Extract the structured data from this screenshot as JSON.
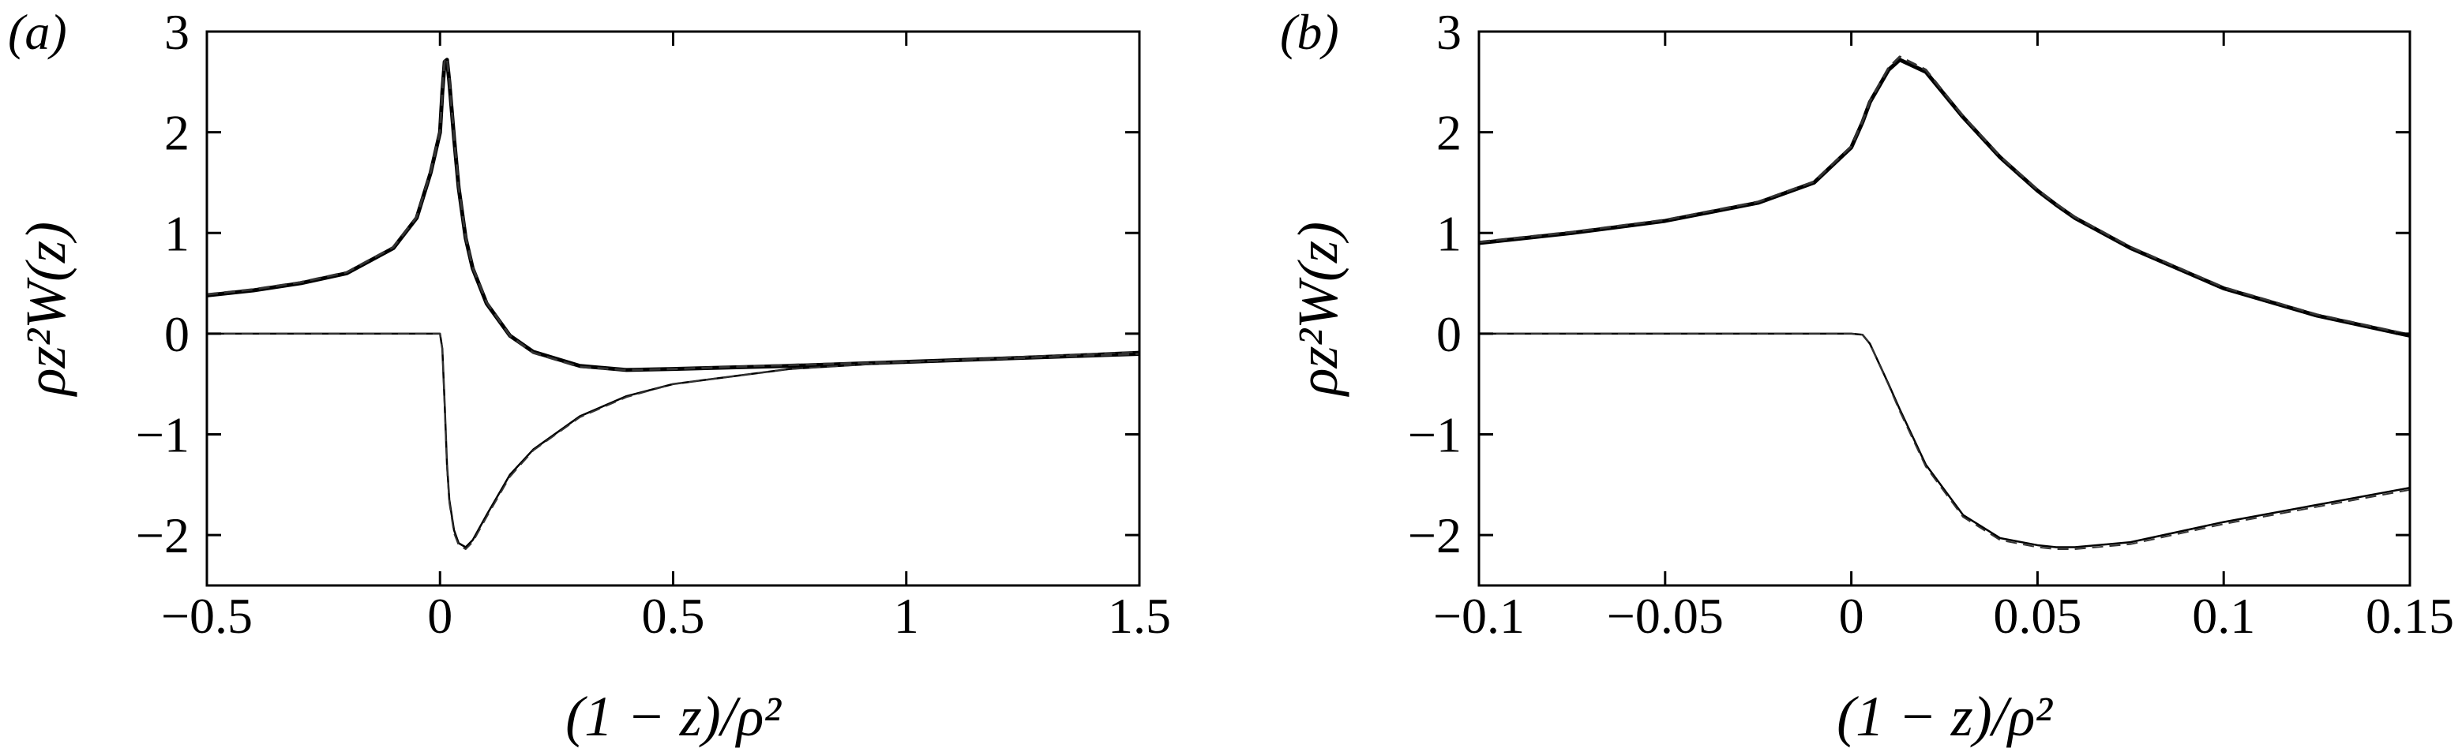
{
  "chart_data": [
    {
      "type": "line",
      "panel_label": "(a)",
      "xlabel": "(1 − z)/ρ²",
      "ylabel": "ρz²W(z)",
      "xlim": [
        -0.5,
        1.5
      ],
      "ylim": [
        -2.5,
        3
      ],
      "xticks": [
        {
          "value": -0.5,
          "label": "−0.5"
        },
        0,
        0.5,
        1,
        1.5
      ],
      "yticks": [
        {
          "value": -2,
          "label": "−2"
        },
        {
          "value": -1,
          "label": "−1"
        },
        0,
        1,
        2,
        3
      ],
      "x": [
        -0.5,
        -0.4,
        -0.3,
        -0.2,
        -0.1,
        -0.05,
        -0.02,
        0,
        0.005,
        0.01,
        0.015,
        0.02,
        0.03,
        0.04,
        0.055,
        0.07,
        0.1,
        0.15,
        0.2,
        0.3,
        0.4,
        0.5,
        0.75,
        1,
        1.25,
        1.5
      ],
      "series": [
        {
          "color": "#000000",
          "linewidth": 5,
          "dash": false,
          "values": [
            0.38,
            0.43,
            0.5,
            0.6,
            0.85,
            1.15,
            1.6,
            2.0,
            2.4,
            2.7,
            2.72,
            2.5,
            1.95,
            1.45,
            0.95,
            0.65,
            0.3,
            -0.02,
            -0.18,
            -0.32,
            -0.36,
            -0.35,
            -0.32,
            -0.28,
            -0.24,
            -0.2
          ]
        },
        {
          "color": "#000000",
          "linewidth": 2.5,
          "dash": false,
          "values": [
            0,
            0,
            0,
            0,
            0,
            0,
            0,
            0,
            -0.15,
            -0.7,
            -1.3,
            -1.65,
            -1.95,
            -2.08,
            -2.12,
            -2.05,
            -1.8,
            -1.4,
            -1.15,
            -0.82,
            -0.62,
            -0.5,
            -0.35,
            -0.28,
            -0.23,
            -0.18
          ]
        },
        {
          "color": "#333333",
          "linewidth": 3,
          "dash": true,
          "values": [
            0.39,
            0.44,
            0.51,
            0.61,
            0.86,
            1.16,
            1.61,
            2.01,
            2.41,
            2.72,
            2.74,
            2.52,
            1.96,
            1.46,
            0.96,
            0.66,
            0.31,
            -0.02,
            -0.19,
            -0.33,
            -0.36,
            -0.35,
            -0.31,
            -0.28,
            -0.24,
            -0.2
          ]
        },
        {
          "color": "#333333",
          "linewidth": 2,
          "dash": true,
          "values": [
            0,
            0,
            0,
            0,
            0,
            0,
            0,
            0,
            -0.15,
            -0.72,
            -1.33,
            -1.68,
            -1.98,
            -2.1,
            -2.14,
            -2.07,
            -1.82,
            -1.42,
            -1.16,
            -0.83,
            -0.63,
            -0.5,
            -0.35,
            -0.28,
            -0.23,
            -0.18
          ]
        }
      ]
    },
    {
      "type": "line",
      "panel_label": "(b)",
      "xlabel": "(1 − z)/ρ²",
      "ylabel": "ρz²W(z)",
      "xlim": [
        -0.1,
        0.15
      ],
      "ylim": [
        -2.5,
        3
      ],
      "xticks": [
        {
          "value": -0.1,
          "label": "−0.1"
        },
        {
          "value": -0.05,
          "label": "−0.05"
        },
        0,
        0.05,
        0.1,
        0.15
      ],
      "yticks": [
        {
          "value": -2,
          "label": "−2"
        },
        {
          "value": -1,
          "label": "−1"
        },
        0,
        1,
        2,
        3
      ],
      "x": [
        -0.1,
        -0.075,
        -0.05,
        -0.025,
        -0.01,
        0,
        0.003,
        0.005,
        0.01,
        0.013,
        0.02,
        0.03,
        0.04,
        0.05,
        0.055,
        0.06,
        0.075,
        0.1,
        0.125,
        0.15
      ],
      "series": [
        {
          "color": "#000000",
          "linewidth": 5,
          "dash": false,
          "values": [
            0.9,
            1.0,
            1.12,
            1.3,
            1.5,
            1.85,
            2.1,
            2.3,
            2.62,
            2.72,
            2.6,
            2.15,
            1.75,
            1.42,
            1.28,
            1.15,
            0.85,
            0.45,
            0.18,
            -0.02
          ]
        },
        {
          "color": "#000000",
          "linewidth": 2.5,
          "dash": false,
          "values": [
            0,
            0,
            0,
            0,
            0,
            0,
            -0.01,
            -0.1,
            -0.5,
            -0.75,
            -1.3,
            -1.8,
            -2.03,
            -2.1,
            -2.12,
            -2.12,
            -2.07,
            -1.87,
            -1.7,
            -1.53
          ]
        },
        {
          "color": "#333333",
          "linewidth": 3,
          "dash": true,
          "values": [
            0.91,
            1.01,
            1.13,
            1.31,
            1.51,
            1.86,
            2.11,
            2.31,
            2.64,
            2.75,
            2.62,
            2.16,
            1.76,
            1.43,
            1.29,
            1.16,
            0.86,
            0.46,
            0.19,
            -0.01
          ]
        },
        {
          "color": "#333333",
          "linewidth": 2,
          "dash": true,
          "values": [
            0,
            0,
            0,
            0,
            0,
            0,
            -0.01,
            -0.1,
            -0.51,
            -0.77,
            -1.32,
            -1.82,
            -2.05,
            -2.12,
            -2.14,
            -2.14,
            -2.09,
            -1.89,
            -1.72,
            -1.55
          ]
        }
      ]
    }
  ]
}
